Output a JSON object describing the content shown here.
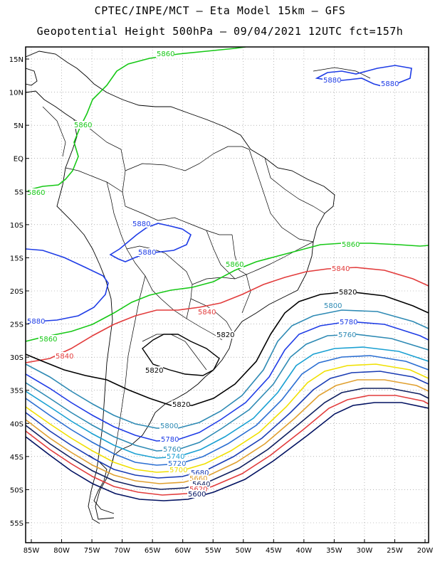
{
  "header": {
    "line1": "CPTEC/INPE/MCT –  Eta Model 15km – GFS",
    "line2": "Geopotential Height 500hPa – 09/04/2021 12UTC fct=157h"
  },
  "axes": {
    "lat_labels": [
      "15N",
      "10N",
      "5N",
      "EQ",
      "5S",
      "10S",
      "15S",
      "20S",
      "25S",
      "30S",
      "35S",
      "40S",
      "45S",
      "50S",
      "55S"
    ],
    "lon_labels": [
      "85W",
      "80W",
      "75W",
      "70W",
      "65W",
      "60W",
      "55W",
      "50W",
      "45W",
      "40W",
      "35W",
      "30W",
      "25W",
      "20W"
    ]
  },
  "contour_colors": {
    "5880": "#1e3ce6",
    "5860": "#16c816",
    "5840": "#e23c3c",
    "5820": "#000000",
    "5800": "#2e8ab4",
    "5780": "#1e3ce6",
    "5760": "#2e8ab4",
    "5740": "#1aa0d2",
    "5720": "#2a6ed2",
    "5700": "#f0e000",
    "5680": "#1a3cb4",
    "5660": "#e0a030",
    "5640": "#102060",
    "5620": "#e23c3c",
    "5600": "#001060"
  },
  "contour_labels": [
    {
      "text": "5860",
      "color": "#16c816"
    },
    {
      "text": "5880",
      "color": "#1e3ce6"
    },
    {
      "text": "5880",
      "color": "#1e3ce6"
    },
    {
      "text": "5860",
      "color": "#16c816"
    },
    {
      "text": "5860",
      "color": "#16c816"
    },
    {
      "text": "5880",
      "color": "#1e3ce6"
    },
    {
      "text": "5880",
      "color": "#1e3ce6"
    },
    {
      "text": "5860",
      "color": "#16c816"
    },
    {
      "text": "5860",
      "color": "#16c816"
    },
    {
      "text": "5840",
      "color": "#e23c3c"
    },
    {
      "text": "5820",
      "color": "#000000"
    },
    {
      "text": "5800",
      "color": "#2e8ab4"
    },
    {
      "text": "5780",
      "color": "#1e3ce6"
    },
    {
      "text": "5760",
      "color": "#2e8ab4"
    },
    {
      "text": "5880",
      "color": "#1e3ce6"
    },
    {
      "text": "5860",
      "color": "#16c816"
    },
    {
      "text": "5840",
      "color": "#e23c3c"
    },
    {
      "text": "5840",
      "color": "#e23c3c"
    },
    {
      "text": "5820",
      "color": "#000000"
    },
    {
      "text": "5820",
      "color": "#000000"
    },
    {
      "text": "5820",
      "color": "#000000"
    },
    {
      "text": "5800",
      "color": "#2e8ab4"
    },
    {
      "text": "5780",
      "color": "#1e3ce6"
    },
    {
      "text": "5760",
      "color": "#2e8ab4"
    },
    {
      "text": "5740",
      "color": "#1aa0d2"
    },
    {
      "text": "5720",
      "color": "#2a6ed2"
    },
    {
      "text": "5700",
      "color": "#f0e000"
    },
    {
      "text": "5680",
      "color": "#1a3cb4"
    },
    {
      "text": "5660",
      "color": "#e0a030"
    },
    {
      "text": "5640",
      "color": "#102060"
    },
    {
      "text": "5620",
      "color": "#e23c3c"
    },
    {
      "text": "5600",
      "color": "#001060"
    }
  ]
}
